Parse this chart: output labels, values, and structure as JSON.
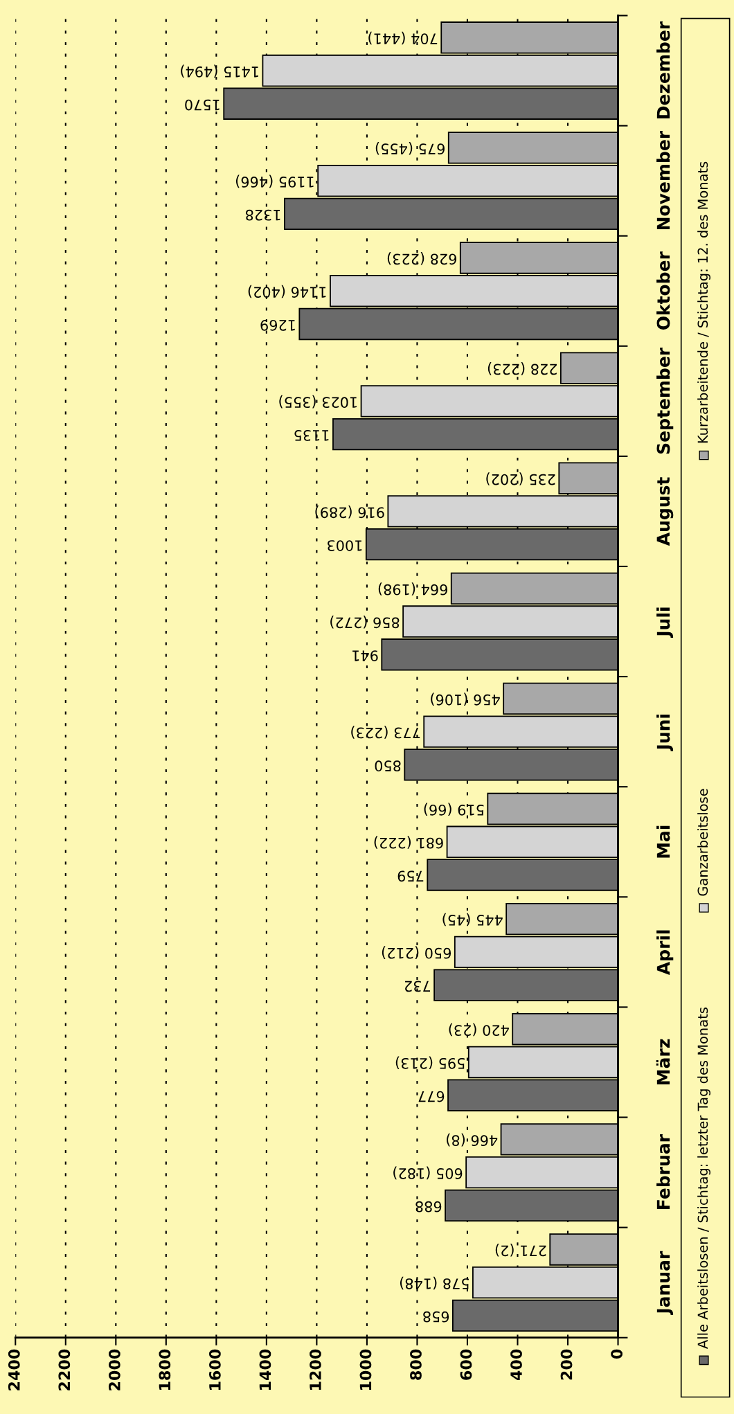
{
  "chart_data": {
    "type": "bar",
    "orientation": "horizontal",
    "categories": [
      "Dezember",
      "November",
      "Oktober",
      "September",
      "August",
      "Juli",
      "Juni",
      "Mai",
      "April",
      "März",
      "Februar",
      "Januar"
    ],
    "series": [
      {
        "name": "Alle Arbeitslosen / Stichtag: letzter Tag des Monats",
        "color": "#6a6a6a",
        "values": [
          1570,
          1328,
          1269,
          1135,
          1003,
          941,
          850,
          759,
          732,
          677,
          688,
          658
        ],
        "value_labels": [
          "1570",
          "1328",
          "1269",
          "1135",
          "1003",
          "941",
          "850",
          "759",
          "732",
          "677",
          "688",
          "658"
        ]
      },
      {
        "name": "Ganzarbeitslose",
        "color": "#d4d4d4",
        "values": [
          1415,
          1195,
          1146,
          1023,
          916,
          856,
          773,
          681,
          650,
          595,
          605,
          578
        ],
        "value_labels": [
          "1415 (494)",
          "1195 (466)",
          "1146 (402)",
          "1023 (355)",
          "916 (289)",
          "856 (272)",
          "773 (223)",
          "681 (222)",
          "650 (212)",
          "595 (213)",
          "605 (182)",
          "578 (148)"
        ]
      },
      {
        "name": "Kurzarbeitende / Stichtag: 12. des Monats",
        "color": "#a8a8a8",
        "values": [
          704,
          675,
          628,
          228,
          235,
          664,
          456,
          519,
          445,
          420,
          466,
          271
        ],
        "value_labels": [
          "704 (441)",
          "675 (455)",
          "628 (223)",
          "228 (223)",
          "235 (202)",
          "664 (198)",
          "456 (106)",
          "519 (66)",
          "445 (45)",
          "420 (23)",
          "466 (8)",
          "271 (2)"
        ]
      }
    ],
    "xlim": [
      2400,
      0
    ],
    "xticks": [
      0,
      200,
      400,
      600,
      800,
      1000,
      1200,
      1400,
      1600,
      1800,
      2000,
      2200,
      2400
    ],
    "grid": "x",
    "legend": "right"
  }
}
